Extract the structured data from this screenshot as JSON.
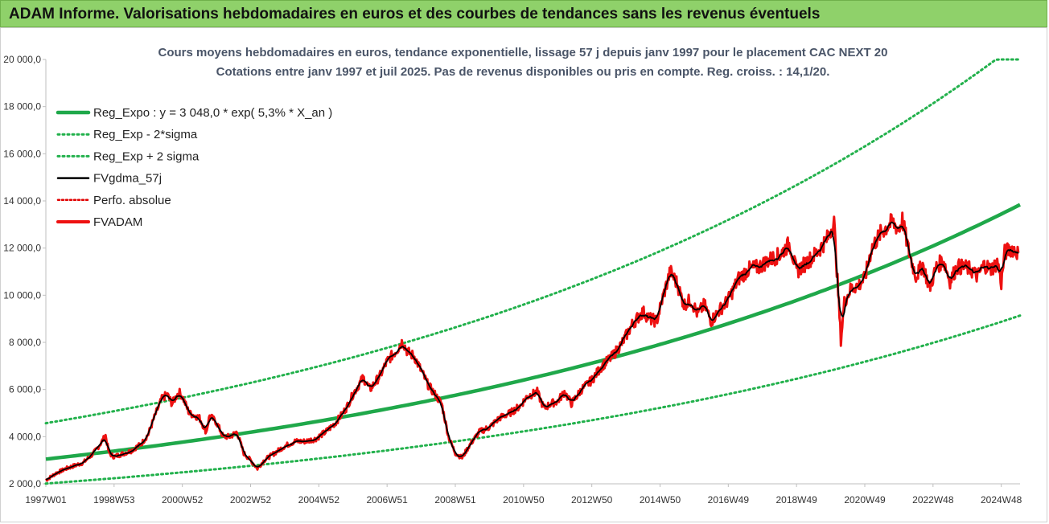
{
  "header": {
    "title": "ADAM Informe. Valorisations hebdomadaires en euros et des courbes de tendances sans les revenus éventuels"
  },
  "chart_data": {
    "type": "line",
    "title_line1": "Cours moyens hebdomadaires en euros, tendance exponentielle, lissage 57 j depuis janv 1997  pour le placement CAC NEXT 20",
    "title_line2": "Cotations entre janv 1997 et juil 2025. Pas de revenus disponibles ou pris en compte. Reg. croiss. : 14,1/20.",
    "x_tick_labels": [
      "1997W01",
      "1998W53",
      "2000W52",
      "2002W52",
      "2004W52",
      "2006W51",
      "2008W51",
      "2010W50",
      "2012W50",
      "2014W50",
      "2016W49",
      "2018W49",
      "2020W49",
      "2022W48",
      "2024W48"
    ],
    "x_tick_years": [
      1997,
      1999,
      2001,
      2003,
      2005,
      2007,
      2009,
      2011,
      2013,
      2015,
      2017,
      2019,
      2021,
      2023,
      2025
    ],
    "xlim": [
      1997.0,
      2025.55
    ],
    "y_tick_labels": [
      "2 000,0",
      "4 000,0",
      "6 000,0",
      "8 000,0",
      "10 000,0",
      "12 000,0",
      "14 000,0",
      "16 000,0",
      "18 000,0",
      "20 000,0"
    ],
    "y_ticks": [
      2000,
      4000,
      6000,
      8000,
      10000,
      12000,
      14000,
      16000,
      18000,
      20000
    ],
    "ylim": [
      2000,
      20000
    ],
    "grid": "off",
    "legend_position": "top-left",
    "colors": {
      "reg_expo": "#1fa84a",
      "reg_bands": "#22b14c",
      "fvgdma": "#000000",
      "perfo": "#e00000",
      "fvadam": "#ee1111",
      "banner": "#8fd16a"
    },
    "series": [
      {
        "key": "reg_expo",
        "name": "Reg_Expo : y = 3 048,0 * exp( 5,3% *  X_an )",
        "style": "solid-thick"
      },
      {
        "key": "reg_minus",
        "name": "Reg_Exp - 2*sigma",
        "style": "dotted"
      },
      {
        "key": "reg_plus",
        "name": "Reg_Exp + 2 sigma",
        "style": "dotted"
      },
      {
        "key": "fvgdma",
        "name": "FVgdma_57j",
        "style": "solid"
      },
      {
        "key": "perfo",
        "name": "Perfo. absolue",
        "style": "dotted-red"
      },
      {
        "key": "fvadam",
        "name": "FVADAM",
        "style": "solid-red-thick"
      }
    ],
    "regression": {
      "a": 3048.0,
      "rate": 0.053,
      "lower_factor": 0.66,
      "upper_factor": 1.5,
      "upper_cap": 20000
    },
    "fvadam_points": [
      [
        1997.0,
        2150
      ],
      [
        1997.3,
        2450
      ],
      [
        1997.6,
        2650
      ],
      [
        1997.9,
        2800
      ],
      [
        1998.1,
        2900
      ],
      [
        1998.4,
        3300
      ],
      [
        1998.6,
        3700
      ],
      [
        1998.75,
        4050
      ],
      [
        1998.85,
        3300
      ],
      [
        1999.0,
        3150
      ],
      [
        1999.3,
        3300
      ],
      [
        1999.5,
        3400
      ],
      [
        1999.8,
        3700
      ],
      [
        2000.0,
        4100
      ],
      [
        2000.2,
        4900
      ],
      [
        2000.4,
        5600
      ],
      [
        2000.55,
        5800
      ],
      [
        2000.7,
        5400
      ],
      [
        2000.9,
        5900
      ],
      [
        2001.0,
        5700
      ],
      [
        2001.2,
        5000
      ],
      [
        2001.5,
        4800
      ],
      [
        2001.7,
        4200
      ],
      [
        2001.8,
        4900
      ],
      [
        2002.0,
        4600
      ],
      [
        2002.2,
        4000
      ],
      [
        2002.4,
        4000
      ],
      [
        2002.6,
        4200
      ],
      [
        2002.8,
        3300
      ],
      [
        2003.0,
        3000
      ],
      [
        2003.2,
        2650
      ],
      [
        2003.4,
        3000
      ],
      [
        2003.7,
        3300
      ],
      [
        2004.0,
        3600
      ],
      [
        2004.3,
        3800
      ],
      [
        2004.6,
        3800
      ],
      [
        2004.9,
        3900
      ],
      [
        2005.2,
        4200
      ],
      [
        2005.5,
        4600
      ],
      [
        2005.8,
        5200
      ],
      [
        2006.0,
        5800
      ],
      [
        2006.3,
        6500
      ],
      [
        2006.5,
        6000
      ],
      [
        2006.8,
        6600
      ],
      [
        2007.0,
        7200
      ],
      [
        2007.3,
        7700
      ],
      [
        2007.45,
        8050
      ],
      [
        2007.6,
        7600
      ],
      [
        2007.8,
        7400
      ],
      [
        2008.0,
        6800
      ],
      [
        2008.2,
        6200
      ],
      [
        2008.4,
        5800
      ],
      [
        2008.6,
        5400
      ],
      [
        2008.8,
        4000
      ],
      [
        2009.0,
        3300
      ],
      [
        2009.2,
        3100
      ],
      [
        2009.4,
        3600
      ],
      [
        2009.7,
        4200
      ],
      [
        2010.0,
        4400
      ],
      [
        2010.3,
        4800
      ],
      [
        2010.6,
        5000
      ],
      [
        2010.9,
        5300
      ],
      [
        2011.1,
        5700
      ],
      [
        2011.4,
        5900
      ],
      [
        2011.6,
        5200
      ],
      [
        2011.8,
        5400
      ],
      [
        2012.0,
        5500
      ],
      [
        2012.2,
        5900
      ],
      [
        2012.4,
        5400
      ],
      [
        2012.7,
        6000
      ],
      [
        2013.0,
        6400
      ],
      [
        2013.3,
        7000
      ],
      [
        2013.6,
        7400
      ],
      [
        2013.9,
        8000
      ],
      [
        2014.2,
        8800
      ],
      [
        2014.5,
        9300
      ],
      [
        2014.7,
        9000
      ],
      [
        2014.9,
        8900
      ],
      [
        2015.1,
        10000
      ],
      [
        2015.3,
        11000
      ],
      [
        2015.5,
        10500
      ],
      [
        2015.7,
        9600
      ],
      [
        2015.9,
        9800
      ],
      [
        2016.1,
        9200
      ],
      [
        2016.3,
        9600
      ],
      [
        2016.5,
        8900
      ],
      [
        2016.7,
        9300
      ],
      [
        2017.0,
        9800
      ],
      [
        2017.3,
        10700
      ],
      [
        2017.6,
        11100
      ],
      [
        2017.9,
        11200
      ],
      [
        2018.2,
        11500
      ],
      [
        2018.5,
        11700
      ],
      [
        2018.8,
        12200
      ],
      [
        2019.0,
        11000
      ],
      [
        2019.3,
        11400
      ],
      [
        2019.6,
        11800
      ],
      [
        2019.9,
        12400
      ],
      [
        2020.1,
        13100
      ],
      [
        2020.2,
        10600
      ],
      [
        2020.3,
        8100
      ],
      [
        2020.4,
        9700
      ],
      [
        2020.6,
        10300
      ],
      [
        2020.8,
        10400
      ],
      [
        2021.0,
        10700
      ],
      [
        2021.2,
        12000
      ],
      [
        2021.5,
        12700
      ],
      [
        2021.8,
        13100
      ],
      [
        2022.0,
        12800
      ],
      [
        2022.1,
        13200
      ],
      [
        2022.3,
        11800
      ],
      [
        2022.5,
        10800
      ],
      [
        2022.7,
        11300
      ],
      [
        2022.9,
        10300
      ],
      [
        2023.1,
        11200
      ],
      [
        2023.3,
        11500
      ],
      [
        2023.5,
        10600
      ],
      [
        2023.7,
        11200
      ],
      [
        2023.9,
        11200
      ],
      [
        2024.1,
        11100
      ],
      [
        2024.3,
        10800
      ],
      [
        2024.5,
        11300
      ],
      [
        2024.7,
        11100
      ],
      [
        2024.9,
        11400
      ],
      [
        2025.0,
        10500
      ],
      [
        2025.1,
        11800
      ],
      [
        2025.3,
        12000
      ],
      [
        2025.5,
        11800
      ]
    ]
  }
}
